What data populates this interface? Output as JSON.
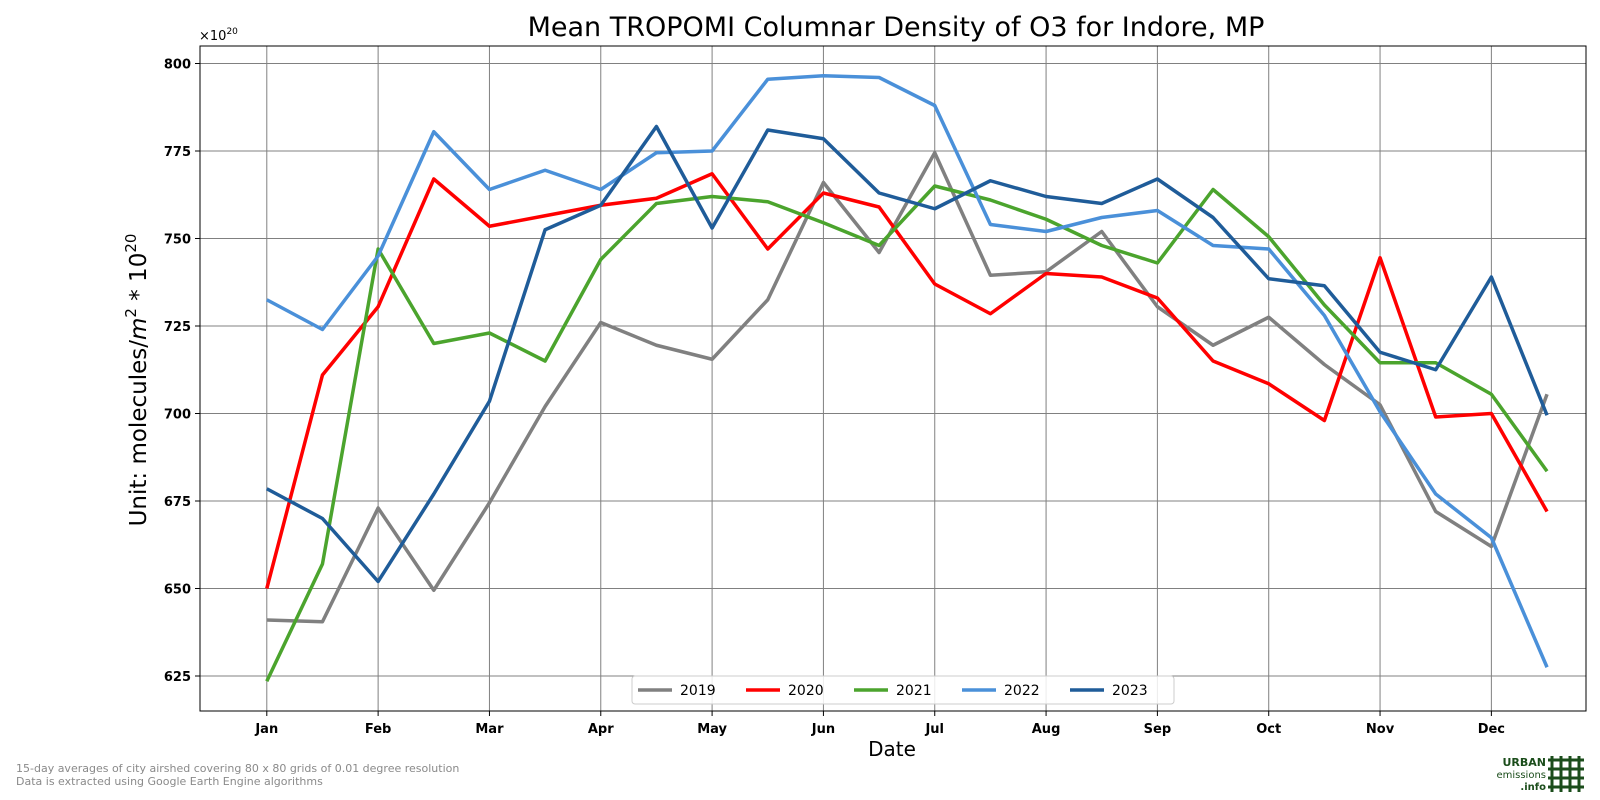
{
  "chart_data": {
    "type": "line",
    "title": "Mean TROPOMI Columnar Density of O3 for Indore, MP",
    "xlabel": "Date",
    "ylabel_prefix": "Unit: molecules/",
    "ylabel_m": "m",
    "ylabel_m_exp": "2",
    "ylabel_mid": " * 10",
    "ylabel_exp": "20",
    "offset_base": "×10",
    "offset_exp": "20",
    "ylim": [
      615,
      805
    ],
    "yticks": [
      625,
      650,
      675,
      700,
      725,
      750,
      775,
      800
    ],
    "xlim": [
      -0.6,
      11.85
    ],
    "xticks": [
      0,
      1,
      2,
      3,
      4,
      5,
      6,
      7,
      8,
      9,
      10,
      11
    ],
    "xtick_labels": [
      "Jan",
      "Feb",
      "Mar",
      "Apr",
      "May",
      "Jun",
      "Jul",
      "Aug",
      "Sep",
      "Oct",
      "Nov",
      "Dec"
    ],
    "grid": true,
    "legend_position": "bottom-center",
    "series": [
      {
        "name": "2019",
        "color": "#808080",
        "values": [
          641,
          640.5,
          673,
          649.5,
          674.5,
          702,
          726,
          719.5,
          715.5,
          732.5,
          766,
          746,
          774.5,
          739.5,
          740.5,
          752,
          730.5,
          719.5,
          727.5,
          714,
          702.5,
          672,
          662,
          705.5
        ]
      },
      {
        "name": "2020",
        "color": "#ff0000",
        "values": [
          650,
          711,
          730.5,
          767,
          753.5,
          756.5,
          759.5,
          761.5,
          768.5,
          747,
          763,
          759,
          737,
          728.5,
          740,
          739,
          733,
          715,
          708.5,
          698,
          744.5,
          699,
          700,
          672
        ]
      },
      {
        "name": "2021",
        "color": "#4ba42d",
        "values": [
          623.5,
          657,
          747,
          720,
          723,
          715,
          744,
          760,
          762,
          760.5,
          754.5,
          748,
          765,
          761,
          755.5,
          748,
          743,
          764,
          750.5,
          731,
          714.5,
          714.5,
          705.5,
          683.5
        ]
      },
      {
        "name": "2022",
        "color": "#4a90d9",
        "values": [
          732.5,
          724,
          745,
          780.5,
          764,
          769.5,
          764,
          774.5,
          775,
          795.5,
          796.5,
          796,
          788,
          754,
          752,
          756,
          758,
          748,
          747,
          728,
          700.5,
          677,
          664.5,
          627.5
        ]
      },
      {
        "name": "2023",
        "color": "#1f5c99",
        "values": [
          678.5,
          670,
          652,
          677,
          703.5,
          752.5,
          759.5,
          782,
          753,
          781,
          778.5,
          763,
          758.5,
          766.5,
          762,
          760,
          767,
          756,
          738.5,
          736.5,
          717.5,
          712.5,
          739,
          699.5
        ]
      }
    ]
  },
  "footnotes": [
    "15-day averages of city airshed covering 80 x 80 grids of 0.01 degree resolution",
    "Data is extracted using Google Earth Engine algorithms"
  ],
  "logo": {
    "line1": "URBAN",
    "line2": "emissions",
    "line3": ".info",
    "color": "#1b4d1b"
  }
}
